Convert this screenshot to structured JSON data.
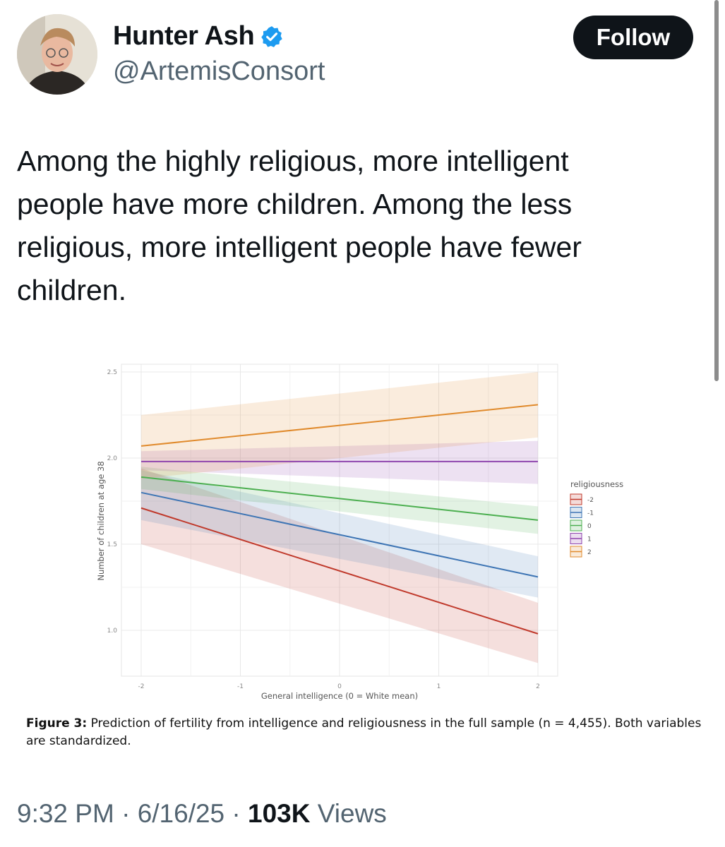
{
  "author": {
    "name": "Hunter Ash",
    "handle": "@ArtemisConsort",
    "avatar_icon": "profile-photo",
    "verified_icon": "verified-badge-icon"
  },
  "follow_label": "Follow",
  "tweet_text": "Among the highly religious, more intelligent people have more children. Among the less religious, more intelligent people have fewer children.",
  "figure": {
    "caption_label": "Figure 3:",
    "caption_text": " Prediction of fertility from intelligence and religiousness in the full sample (n = 4,455). Both variables are standardized."
  },
  "meta": {
    "time": "9:32 PM",
    "separator": " · ",
    "date": "6/16/25",
    "views_count": "103K",
    "views_label": " Views"
  },
  "colors": {
    "accent": "#1d9bf0",
    "text": "#0f1419",
    "muted": "#536471"
  },
  "chart_data": {
    "type": "line",
    "title": "",
    "xlabel": "General intelligence (0 = White mean)",
    "ylabel": "Number of children at age 38",
    "xlim": [
      -2,
      2
    ],
    "ylim": [
      0.8,
      2.55
    ],
    "x_ticks": [
      -2,
      -1,
      0,
      1,
      2
    ],
    "x_tick_labels": [
      "-2",
      "-1",
      "0",
      "1",
      "2"
    ],
    "y_ticks": [
      1.0,
      1.5,
      2.0,
      2.5
    ],
    "y_tick_labels": [
      "1.0",
      "1.5",
      "2.0",
      "2.5"
    ],
    "grid": true,
    "legend_title": "religiousness",
    "legend_position": "right",
    "x": [
      -2,
      2
    ],
    "series": [
      {
        "name": "-2",
        "color": "#c0392b",
        "values": [
          1.71,
          0.98
        ],
        "lower": [
          1.5,
          0.81
        ],
        "upper": [
          1.94,
          1.16
        ]
      },
      {
        "name": "-1",
        "color": "#3e75b4",
        "values": [
          1.8,
          1.31
        ],
        "lower": [
          1.64,
          1.19
        ],
        "upper": [
          1.93,
          1.43
        ]
      },
      {
        "name": "0",
        "color": "#4caf50",
        "values": [
          1.89,
          1.64
        ],
        "lower": [
          1.82,
          1.56
        ],
        "upper": [
          1.95,
          1.72
        ]
      },
      {
        "name": "1",
        "color": "#8e44ad",
        "values": [
          1.98,
          1.98
        ],
        "lower": [
          1.93,
          1.85
        ],
        "upper": [
          2.04,
          2.1
        ]
      },
      {
        "name": "2",
        "color": "#e08a2c",
        "values": [
          2.07,
          2.31
        ],
        "lower": [
          1.88,
          2.12
        ],
        "upper": [
          2.25,
          2.5
        ]
      }
    ]
  }
}
